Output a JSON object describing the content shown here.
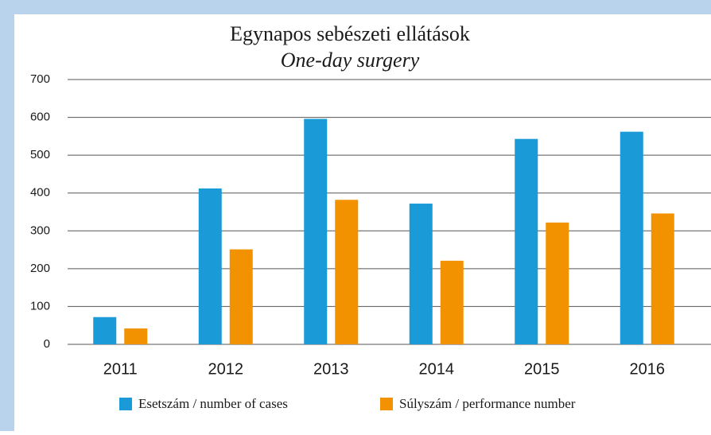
{
  "chart_data": {
    "type": "bar",
    "title": "Egynapos sebészeti ellátások",
    "subtitle": "One-day surgery",
    "categories": [
      "2011",
      "2012",
      "2013",
      "2014",
      "2015",
      "2016"
    ],
    "series": [
      {
        "name": "Esetszám / number of cases",
        "color": "#1a9ad6",
        "values": [
          72,
          412,
          596,
          372,
          543,
          562
        ]
      },
      {
        "name": "Súlyszám / performance number",
        "color": "#f39200",
        "values": [
          42,
          251,
          382,
          221,
          322,
          346
        ]
      }
    ],
    "ylim": [
      0,
      700
    ],
    "yticks": [
      0,
      100,
      200,
      300,
      400,
      500,
      600,
      700
    ],
    "grid": true,
    "legend": "bottom"
  }
}
